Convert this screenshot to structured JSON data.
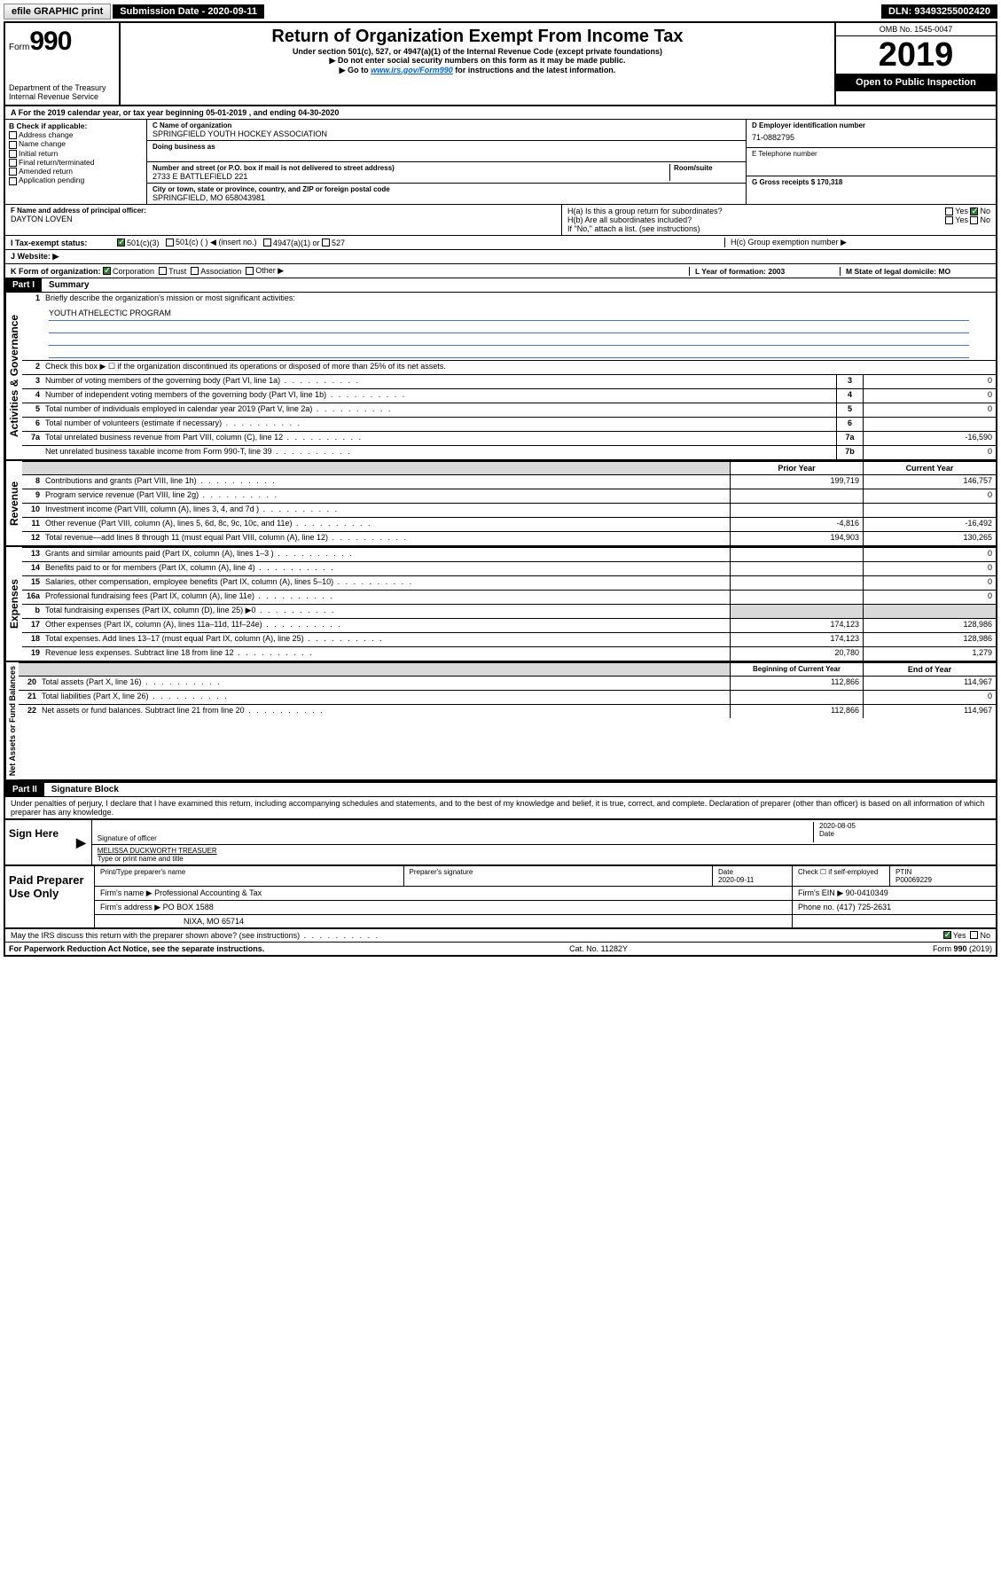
{
  "topbar": {
    "efile": "efile GRAPHIC print",
    "submission_label": "Submission Date - 2020-09-11",
    "dln": "DLN: 93493255002420"
  },
  "header": {
    "form_label": "Form",
    "form_number": "990",
    "dept": "Department of the Treasury",
    "irs": "Internal Revenue Service",
    "title": "Return of Organization Exempt From Income Tax",
    "subtitle": "Under section 501(c), 527, or 4947(a)(1) of the Internal Revenue Code (except private foundations)",
    "note1": "▶ Do not enter social security numbers on this form as it may be made public.",
    "note2_pre": "▶ Go to ",
    "note2_link": "www.irs.gov/Form990",
    "note2_post": " for instructions and the latest information.",
    "omb": "OMB No. 1545-0047",
    "year": "2019",
    "open": "Open to Public Inspection"
  },
  "period": {
    "text_a": "A For the 2019 calendar year, or tax year beginning 05-01-2019    , and ending 04-30-2020"
  },
  "block_b": {
    "label": "B Check if applicable:",
    "items": [
      "Address change",
      "Name change",
      "Initial return",
      "Final return/terminated",
      "Amended return",
      "Application pending"
    ]
  },
  "block_c": {
    "name_label": "C Name of organization",
    "name": "SPRINGFIELD YOUTH HOCKEY ASSOCIATION",
    "dba_label": "Doing business as",
    "addr_label": "Number and street (or P.O. box if mail is not delivered to street address)",
    "room_label": "Room/suite",
    "addr": "2733 E BATTLEFIELD 221",
    "city_label": "City or town, state or province, country, and ZIP or foreign postal code",
    "city": "SPRINGFIELD, MO  658043981"
  },
  "block_d": {
    "ein_label": "D Employer identification number",
    "ein": "71-0882795",
    "phone_label": "E Telephone number",
    "gross_label": "G Gross receipts $ 170,318"
  },
  "block_f": {
    "label": "F  Name and address of principal officer:",
    "name": "DAYTON LOVEN"
  },
  "block_h": {
    "a": "H(a)  Is this a group return for subordinates?",
    "b": "H(b)  Are all subordinates included?",
    "b_note": "If \"No,\" attach a list. (see instructions)",
    "c": "H(c)  Group exemption number ▶",
    "yes": "Yes",
    "no": "No"
  },
  "exempt": {
    "label": "I   Tax-exempt status:",
    "opt1": "501(c)(3)",
    "opt2": "501(c) (  ) ◀ (insert no.)",
    "opt3": "4947(a)(1) or",
    "opt4": "527"
  },
  "website": {
    "label": "J   Website: ▶"
  },
  "block_k": {
    "label": "K Form of organization:",
    "corp": "Corporation",
    "trust": "Trust",
    "assoc": "Association",
    "other": "Other ▶"
  },
  "block_l": {
    "label": "L Year of formation: 2003"
  },
  "block_m": {
    "label": "M State of legal domicile: MO"
  },
  "part1": {
    "header": "Part I",
    "title": "Summary"
  },
  "summary": {
    "q1": "Briefly describe the organization's mission or most significant activities:",
    "mission": "YOUTH ATHELECTIC PROGRAM",
    "q2": "Check this box ▶ ☐  if the organization discontinued its operations or disposed of more than 25% of its net assets.",
    "lines": [
      {
        "n": "3",
        "d": "Number of voting members of the governing body (Part VI, line 1a)",
        "box": "3",
        "v": "0"
      },
      {
        "n": "4",
        "d": "Number of independent voting members of the governing body (Part VI, line 1b)",
        "box": "4",
        "v": "0"
      },
      {
        "n": "5",
        "d": "Total number of individuals employed in calendar year 2019 (Part V, line 2a)",
        "box": "5",
        "v": "0"
      },
      {
        "n": "6",
        "d": "Total number of volunteers (estimate if necessary)",
        "box": "6",
        "v": ""
      },
      {
        "n": "7a",
        "d": "Total unrelated business revenue from Part VIII, column (C), line 12",
        "box": "7a",
        "v": "-16,590"
      },
      {
        "n": "",
        "d": "Net unrelated business taxable income from Form 990-T, line 39",
        "box": "7b",
        "v": "0"
      }
    ],
    "prior": "Prior Year",
    "current": "Current Year",
    "rev": [
      {
        "n": "8",
        "d": "Contributions and grants (Part VIII, line 1h)",
        "p": "199,719",
        "c": "146,757"
      },
      {
        "n": "9",
        "d": "Program service revenue (Part VIII, line 2g)",
        "p": "",
        "c": "0"
      },
      {
        "n": "10",
        "d": "Investment income (Part VIII, column (A), lines 3, 4, and 7d )",
        "p": "",
        "c": ""
      },
      {
        "n": "11",
        "d": "Other revenue (Part VIII, column (A), lines 5, 6d, 8c, 9c, 10c, and 11e)",
        "p": "-4,816",
        "c": "-16,492"
      },
      {
        "n": "12",
        "d": "Total revenue—add lines 8 through 11 (must equal Part VIII, column (A), line 12)",
        "p": "194,903",
        "c": "130,265"
      }
    ],
    "exp": [
      {
        "n": "13",
        "d": "Grants and similar amounts paid (Part IX, column (A), lines 1–3 )",
        "p": "",
        "c": "0"
      },
      {
        "n": "14",
        "d": "Benefits paid to or for members (Part IX, column (A), line 4)",
        "p": "",
        "c": "0"
      },
      {
        "n": "15",
        "d": "Salaries, other compensation, employee benefits (Part IX, column (A), lines 5–10)",
        "p": "",
        "c": "0"
      },
      {
        "n": "16a",
        "d": "Professional fundraising fees (Part IX, column (A), line 11e)",
        "p": "",
        "c": "0"
      },
      {
        "n": "b",
        "d": "Total fundraising expenses (Part IX, column (D), line 25) ▶0",
        "p": "shade",
        "c": "shade"
      },
      {
        "n": "17",
        "d": "Other expenses (Part IX, column (A), lines 11a–11d, 11f–24e)",
        "p": "174,123",
        "c": "128,986"
      },
      {
        "n": "18",
        "d": "Total expenses. Add lines 13–17 (must equal Part IX, column (A), line 25)",
        "p": "174,123",
        "c": "128,986"
      },
      {
        "n": "19",
        "d": "Revenue less expenses. Subtract line 18 from line 12",
        "p": "20,780",
        "c": "1,279"
      }
    ],
    "begin": "Beginning of Current Year",
    "end": "End of Year",
    "net": [
      {
        "n": "20",
        "d": "Total assets (Part X, line 16)",
        "p": "112,866",
        "c": "114,967"
      },
      {
        "n": "21",
        "d": "Total liabilities (Part X, line 26)",
        "p": "",
        "c": "0"
      },
      {
        "n": "22",
        "d": "Net assets or fund balances. Subtract line 21 from line 20",
        "p": "112,866",
        "c": "114,967"
      }
    ]
  },
  "vert": {
    "gov": "Activities & Governance",
    "rev": "Revenue",
    "exp": "Expenses",
    "net": "Net Assets or Fund Balances"
  },
  "part2": {
    "header": "Part II",
    "title": "Signature Block"
  },
  "perjury": "Under penalties of perjury, I declare that I have examined this return, including accompanying schedules and statements, and to the best of my knowledge and belief, it is true, correct, and complete. Declaration of preparer (other than officer) is based on all information of which preparer has any knowledge.",
  "sign": {
    "here": "Sign Here",
    "sig_label": "Signature of officer",
    "date": "2020-08-05",
    "date_label": "Date",
    "name": "MELISSA DUCKWORTH  TREASUER",
    "name_label": "Type or print name and title"
  },
  "paid": {
    "label": "Paid Preparer Use Only",
    "h1": "Print/Type preparer's name",
    "h2": "Preparer's signature",
    "h3": "Date",
    "date": "2020-09-11",
    "h4": "Check ☐ if self-employed",
    "h5": "PTIN",
    "ptin": "P00069229",
    "firm_label": "Firm's name    ▶",
    "firm": "Professional Accounting & Tax",
    "ein_label": "Firm's EIN ▶",
    "ein": "90-0410349",
    "addr_label": "Firm's address ▶",
    "addr1": "PO BOX 1588",
    "addr2": "NIXA, MO  65714",
    "phone_label": "Phone no.",
    "phone": "(417) 725-2631"
  },
  "discuss": "May the IRS discuss this return with the preparer shown above? (see instructions)",
  "footer": {
    "left": "For Paperwork Reduction Act Notice, see the separate instructions.",
    "mid": "Cat. No. 11282Y",
    "right": "Form 990 (2019)"
  }
}
